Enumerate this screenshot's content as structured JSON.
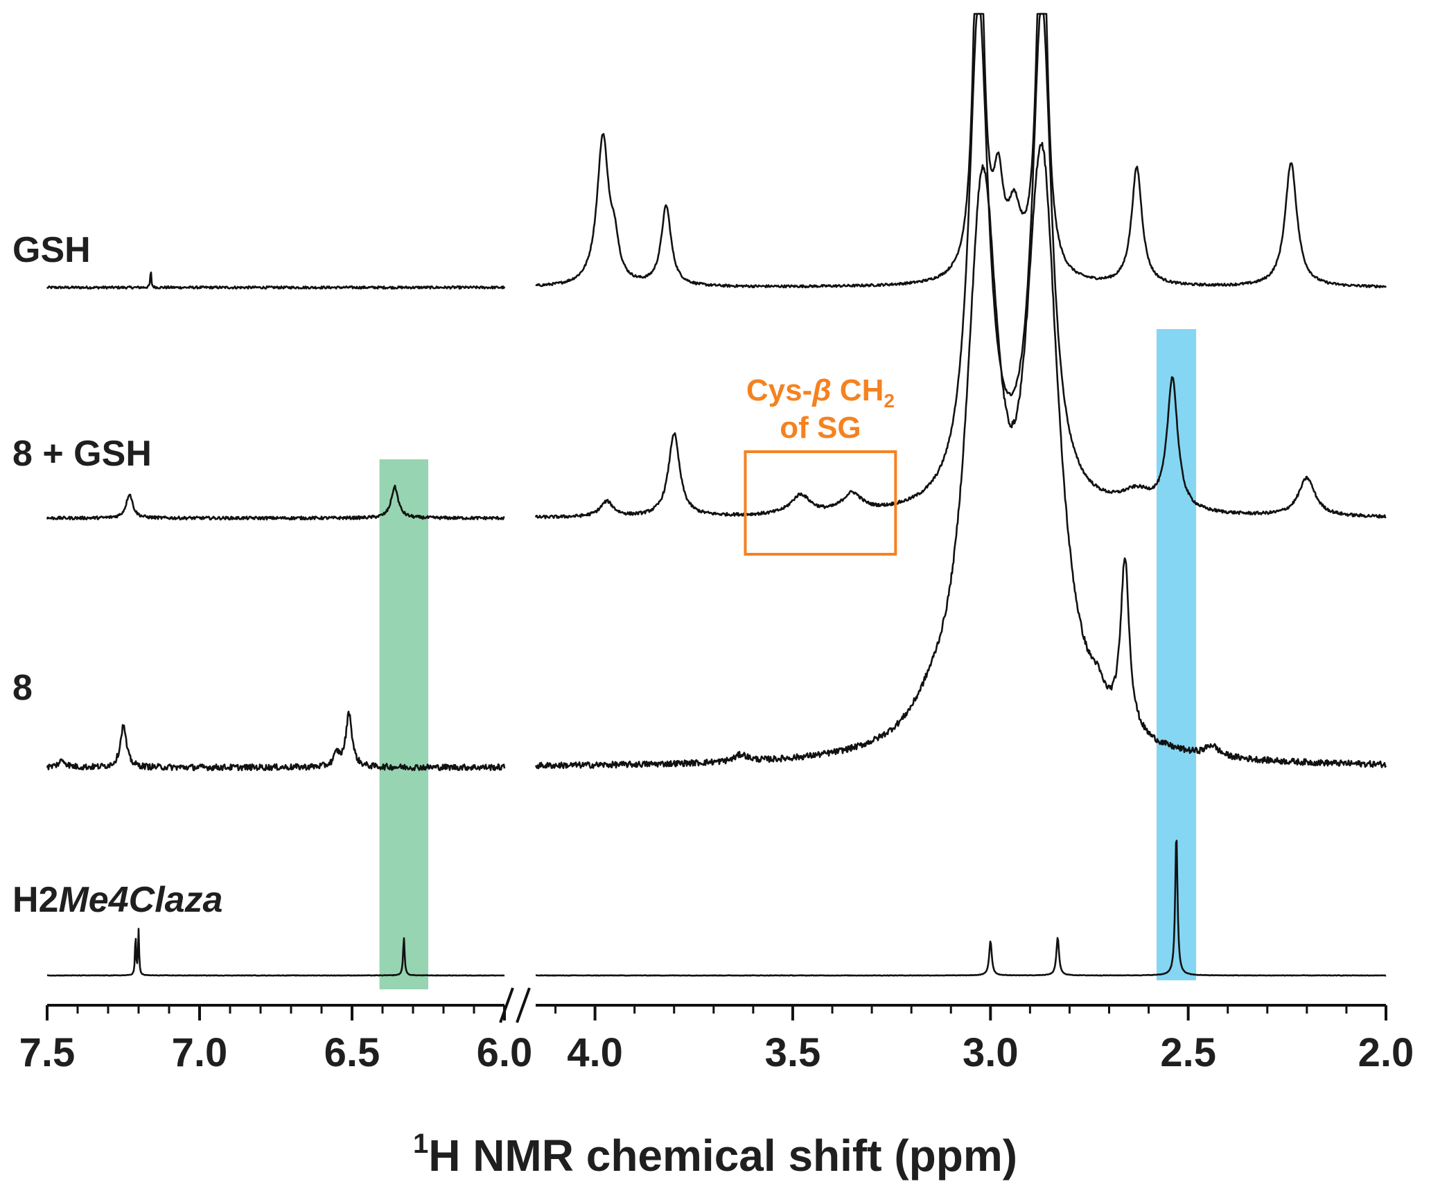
{
  "chart_data": {
    "type": "line",
    "xlabel": {
      "prefix": "1",
      "main": "H NMR chemical shift (ppm)"
    },
    "axis_segments": [
      {
        "range": [
          7.5,
          6.0
        ],
        "ticks": [
          "7.5",
          "7.0",
          "6.5",
          "6.0"
        ]
      },
      {
        "range": [
          4.15,
          2.0
        ],
        "ticks": [
          "4.0",
          "3.5",
          "3.0",
          "2.5",
          "2.0"
        ]
      }
    ],
    "axis_break": true,
    "legend": "none",
    "grid": false,
    "series": [
      {
        "name": "GSH",
        "name_parts": [
          {
            "t": "GSH",
            "i": false
          }
        ],
        "noise": 0.8,
        "peaks": [
          {
            "x": 7.16,
            "h": 25,
            "w": 0.002
          },
          {
            "x": 3.98,
            "h": 215,
            "w": 0.018
          },
          {
            "x": 3.95,
            "h": 45,
            "w": 0.012
          },
          {
            "x": 3.82,
            "h": 115,
            "w": 0.015
          },
          {
            "x": 3.03,
            "h": 650,
            "w": 0.014
          },
          {
            "x": 2.98,
            "h": 120,
            "w": 0.015
          },
          {
            "x": 2.94,
            "h": 85,
            "w": 0.02
          },
          {
            "x": 2.87,
            "h": 650,
            "w": 0.014
          },
          {
            "x": 2.63,
            "h": 170,
            "w": 0.016
          },
          {
            "x": 2.24,
            "h": 180,
            "w": 0.018
          }
        ]
      },
      {
        "name": "8 + GSH",
        "name_parts": [
          {
            "t": "8 + GSH",
            "i": false
          }
        ],
        "noise": 1.0,
        "peaks": [
          {
            "x": 7.23,
            "h": 35,
            "w": 0.013
          },
          {
            "x": 6.36,
            "h": 45,
            "w": 0.014
          },
          {
            "x": 3.97,
            "h": 22,
            "w": 0.02
          },
          {
            "x": 3.8,
            "h": 120,
            "w": 0.017
          },
          {
            "x": 3.48,
            "h": 28,
            "w": 0.03
          },
          {
            "x": 3.35,
            "h": 27,
            "w": 0.03
          },
          {
            "x": 3.03,
            "h": 720,
            "w": 0.03
          },
          {
            "x": 2.87,
            "h": 720,
            "w": 0.03
          },
          {
            "x": 2.63,
            "h": 25,
            "w": 0.05
          },
          {
            "x": 2.54,
            "h": 190,
            "w": 0.016
          },
          {
            "x": 2.2,
            "h": 55,
            "w": 0.025
          }
        ]
      },
      {
        "name": "8",
        "name_parts": [
          {
            "t": "8",
            "i": false
          }
        ],
        "noise": 2.0,
        "peaks": [
          {
            "x": 7.45,
            "h": 10,
            "w": 0.015
          },
          {
            "x": 7.25,
            "h": 60,
            "w": 0.012
          },
          {
            "x": 6.55,
            "h": 18,
            "w": 0.012
          },
          {
            "x": 6.51,
            "h": 78,
            "w": 0.012
          },
          {
            "x": 3.63,
            "h": 10,
            "w": 0.02
          },
          {
            "x": 3.15,
            "h": 25,
            "w": 0.06
          },
          {
            "x": 3.02,
            "h": 780,
            "w": 0.05
          },
          {
            "x": 2.87,
            "h": 820,
            "w": 0.05
          },
          {
            "x": 2.73,
            "h": 25,
            "w": 0.02
          },
          {
            "x": 2.66,
            "h": 245,
            "w": 0.013
          },
          {
            "x": 2.44,
            "h": 15,
            "w": 0.02
          }
        ]
      },
      {
        "name": "H2Me4Claza",
        "name_parts": [
          {
            "t": "H2",
            "i": false
          },
          {
            "t": "Me4Claza",
            "i": true
          }
        ],
        "noise": 0.15,
        "peaks": [
          {
            "x": 7.21,
            "h": 60,
            "w": 0.002
          },
          {
            "x": 7.2,
            "h": 65,
            "w": 0.002
          },
          {
            "x": 6.33,
            "h": 55,
            "w": 0.003
          },
          {
            "x": 3.0,
            "h": 50,
            "w": 0.004
          },
          {
            "x": 2.83,
            "h": 55,
            "w": 0.004
          },
          {
            "x": 2.53,
            "h": 205,
            "w": 0.0035
          }
        ]
      }
    ],
    "highlights": [
      {
        "x0": 6.41,
        "x1": 6.25,
        "color": "#96d4b2"
      },
      {
        "x0": 2.58,
        "x1": 2.48,
        "color": "#85d6f3"
      }
    ],
    "annotation": {
      "line1": "Cys-",
      "line1_beta": "β",
      "line1_tail": " CH",
      "line1_sub": "2",
      "line2": "of SG",
      "box": [
        3.62,
        3.24
      ],
      "color": "#f5821f"
    }
  }
}
